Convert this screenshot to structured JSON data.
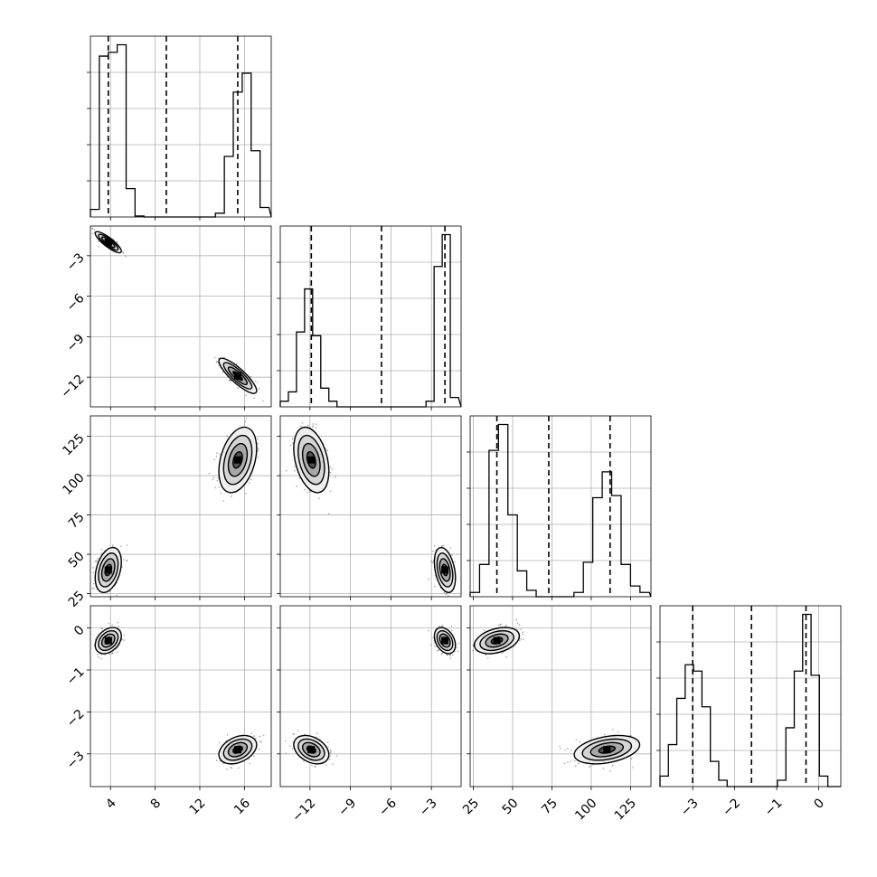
{
  "chart_data": {
    "type": "corner",
    "title": "",
    "parameters": 4,
    "ranges": [
      [
        2.2,
        18.4
      ],
      [
        -14.2,
        -0.8
      ],
      [
        23,
        138
      ],
      [
        -3.78,
        0.53
      ]
    ],
    "ticks": [
      [
        4,
        8,
        12,
        16
      ],
      [
        -12,
        -9,
        -6,
        -3
      ],
      [
        25,
        50,
        75,
        100,
        125
      ],
      [
        -3,
        -2,
        -1,
        0
      ]
    ],
    "tick_labels": [
      [
        "4",
        "8",
        "12",
        "16"
      ],
      [
        "−12",
        "−9",
        "−6",
        "−3"
      ],
      [
        "25",
        "50",
        "75",
        "100",
        "125"
      ],
      [
        "−3",
        "−2",
        "−1",
        "0"
      ]
    ],
    "quantiles": [
      [
        3.8,
        9.0,
        15.4
      ],
      [
        -11.9,
        -6.7,
        -2.0
      ],
      [
        40,
        73,
        112
      ],
      [
        -3.0,
        -1.6,
        -0.3
      ]
    ],
    "histograms": [
      {
        "bin_edges": [
          2.2,
          3.0,
          3.8,
          4.6,
          5.4,
          6.2,
          7.0,
          7.8,
          8.6,
          9.4,
          10.2,
          11.0,
          11.8,
          12.6,
          13.4,
          14.2,
          15.0,
          15.8,
          16.6,
          17.4,
          18.2
        ],
        "counts": [
          0.04,
          0.85,
          0.87,
          0.91,
          0.15,
          0.005,
          0,
          0,
          0,
          0,
          0,
          0,
          0,
          0,
          0.02,
          0.32,
          0.66,
          0.76,
          0.35,
          0.05
        ]
      },
      {
        "bin_edges": [
          -14.2,
          -13.6,
          -13.0,
          -12.4,
          -11.8,
          -11.2,
          -10.6,
          -10.0,
          -9.4,
          -8.8,
          -8.2,
          -7.6,
          -7.0,
          -6.4,
          -5.8,
          -5.2,
          -4.6,
          -4.0,
          -3.4,
          -2.8,
          -2.2,
          -1.6,
          -1.0
        ],
        "counts": [
          0.03,
          0.08,
          0.4,
          0.63,
          0.38,
          0.1,
          0.03,
          0,
          0,
          0,
          0,
          0,
          0,
          0,
          0,
          0,
          0,
          0,
          0.03,
          0.75,
          0.92,
          0.05
        ]
      },
      {
        "bin_edges": [
          23,
          29,
          35,
          41,
          47,
          53,
          59,
          65,
          71,
          77,
          83,
          89,
          95,
          101,
          107,
          113,
          119,
          125,
          131,
          137
        ],
        "counts": [
          0.02,
          0.15,
          0.68,
          0.8,
          0.38,
          0.12,
          0.03,
          0,
          0,
          0,
          0,
          0.02,
          0.16,
          0.46,
          0.58,
          0.47,
          0.15,
          0.05,
          0.02
        ]
      },
      {
        "bin_edges": [
          -3.78,
          -3.58,
          -3.38,
          -3.18,
          -2.98,
          -2.78,
          -2.58,
          -2.38,
          -2.18,
          -1.98,
          -1.78,
          -1.58,
          -1.38,
          -1.18,
          -0.98,
          -0.78,
          -0.58,
          -0.38,
          -0.18,
          0.02,
          0.22,
          0.42
        ],
        "counts": [
          0.05,
          0.2,
          0.42,
          0.58,
          0.55,
          0.38,
          0.12,
          0.03,
          0,
          0,
          0,
          0,
          0,
          0,
          0.03,
          0.28,
          0.55,
          0.82,
          0.53,
          0.05,
          0
        ]
      }
    ],
    "modes": [
      {
        "center": [
          3.8,
          -2.0,
          40,
          -0.3
        ],
        "sd": [
          0.45,
          0.3,
          5.5,
          0.12
        ],
        "corr": -0.85
      },
      {
        "center": [
          15.4,
          -11.9,
          110,
          -2.9
        ],
        "sd": [
          0.65,
          0.5,
          8.0,
          0.13
        ],
        "corr": -0.85
      }
    ],
    "contour_levels_sigma": [
      0.5,
      1.0,
      1.5,
      2.0
    ],
    "grid": true,
    "line_style": "dashed quantile lines"
  }
}
